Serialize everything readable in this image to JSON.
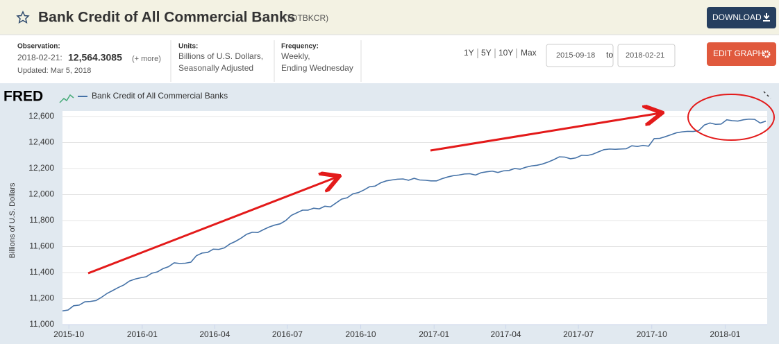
{
  "header": {
    "title": "Bank Credit of All Commercial Banks",
    "series_id": "(TOTBKCR)",
    "download": "DOWNLOAD"
  },
  "info": {
    "observation_label": "Observation:",
    "observation_date": "2018-02-21:",
    "observation_value": "12,564.3085",
    "more": "(+ more)",
    "updated": "Updated: Mar 5, 2018",
    "units_label": "Units:",
    "units": [
      "Billions of U.S. Dollars,",
      "Seasonally Adjusted"
    ],
    "frequency_label": "Frequency:",
    "frequency": [
      "Weekly,",
      "Ending Wednesday"
    ]
  },
  "controls": {
    "ranges": [
      "1Y",
      "5Y",
      "10Y",
      "Max"
    ],
    "start": "2015-09-18",
    "to": "to",
    "end": "2018-02-21",
    "edit": "EDIT GRAPH"
  },
  "chart_data": {
    "type": "line",
    "logo": "FRED",
    "y_label": "Billions of U.S. Dollars",
    "x": [
      "2015-09-23",
      "2015-09-30",
      "2015-10-07",
      "2015-10-14",
      "2015-10-21",
      "2015-10-28",
      "2015-11-04",
      "2015-11-11",
      "2015-11-18",
      "2015-11-25",
      "2015-12-02",
      "2015-12-09",
      "2015-12-16",
      "2015-12-23",
      "2015-12-30",
      "2016-01-06",
      "2016-01-13",
      "2016-01-20",
      "2016-01-27",
      "2016-02-03",
      "2016-02-10",
      "2016-02-17",
      "2016-02-24",
      "2016-03-02",
      "2016-03-09",
      "2016-03-16",
      "2016-03-23",
      "2016-03-30",
      "2016-04-06",
      "2016-04-13",
      "2016-04-20",
      "2016-04-27",
      "2016-05-04",
      "2016-05-11",
      "2016-05-18",
      "2016-05-25",
      "2016-06-01",
      "2016-06-08",
      "2016-06-15",
      "2016-06-22",
      "2016-06-29",
      "2016-07-06",
      "2016-07-13",
      "2016-07-20",
      "2016-07-27",
      "2016-08-03",
      "2016-08-10",
      "2016-08-17",
      "2016-08-24",
      "2016-08-31",
      "2016-09-07",
      "2016-09-14",
      "2016-09-21",
      "2016-09-28",
      "2016-10-05",
      "2016-10-12",
      "2016-10-19",
      "2016-10-26",
      "2016-11-02",
      "2016-11-09",
      "2016-11-16",
      "2016-11-23",
      "2016-11-30",
      "2016-12-07",
      "2016-12-14",
      "2016-12-21",
      "2016-12-28",
      "2017-01-04",
      "2017-01-11",
      "2017-01-18",
      "2017-01-25",
      "2017-02-01",
      "2017-02-08",
      "2017-02-15",
      "2017-02-22",
      "2017-03-01",
      "2017-03-08",
      "2017-03-15",
      "2017-03-22",
      "2017-03-29",
      "2017-04-05",
      "2017-04-12",
      "2017-04-19",
      "2017-04-26",
      "2017-05-03",
      "2017-05-10",
      "2017-05-17",
      "2017-05-24",
      "2017-05-31",
      "2017-06-07",
      "2017-06-14",
      "2017-06-21",
      "2017-06-28",
      "2017-07-05",
      "2017-07-12",
      "2017-07-19",
      "2017-07-26",
      "2017-08-02",
      "2017-08-09",
      "2017-08-16",
      "2017-08-23",
      "2017-08-30",
      "2017-09-06",
      "2017-09-13",
      "2017-09-20",
      "2017-09-27",
      "2017-10-04",
      "2017-10-11",
      "2017-10-18",
      "2017-10-25",
      "2017-11-01",
      "2017-11-08",
      "2017-11-15",
      "2017-11-22",
      "2017-11-29",
      "2017-12-06",
      "2017-12-13",
      "2017-12-20",
      "2017-12-27",
      "2018-01-03",
      "2018-01-10",
      "2018-01-17",
      "2018-01-24",
      "2018-01-31",
      "2018-02-07",
      "2018-02-14",
      "2018-02-21"
    ],
    "series": [
      {
        "name": "Bank Credit of All Commercial Banks",
        "color": "#4572a7",
        "values": [
          11105,
          11112,
          11145,
          11150,
          11175,
          11178,
          11185,
          11210,
          11240,
          11262,
          11285,
          11305,
          11335,
          11350,
          11360,
          11368,
          11395,
          11405,
          11430,
          11445,
          11475,
          11470,
          11472,
          11480,
          11530,
          11550,
          11555,
          11580,
          11578,
          11590,
          11620,
          11640,
          11665,
          11695,
          11710,
          11708,
          11730,
          11750,
          11765,
          11775,
          11800,
          11840,
          11860,
          11880,
          11880,
          11895,
          11890,
          11910,
          11905,
          11935,
          11965,
          11975,
          12005,
          12015,
          12035,
          12060,
          12065,
          12090,
          12105,
          12112,
          12118,
          12120,
          12110,
          12125,
          12112,
          12110,
          12105,
          12105,
          12122,
          12135,
          12145,
          12150,
          12158,
          12160,
          12150,
          12168,
          12175,
          12180,
          12170,
          12182,
          12185,
          12200,
          12195,
          12210,
          12220,
          12225,
          12235,
          12250,
          12268,
          12290,
          12288,
          12275,
          12282,
          12302,
          12300,
          12310,
          12328,
          12345,
          12350,
          12348,
          12350,
          12352,
          12375,
          12370,
          12378,
          12372,
          12430,
          12432,
          12445,
          12460,
          12475,
          12482,
          12486,
          12485,
          12492,
          12535,
          12550,
          12540,
          12542,
          12575,
          12568,
          12565,
          12575,
          12580,
          12578,
          12550,
          12564.3085
        ]
      }
    ],
    "xlim": [
      "2015-09-23",
      "2018-02-21"
    ],
    "xticks": [
      {
        "value": "2015-10-01",
        "label": "2015-10"
      },
      {
        "value": "2016-01-01",
        "label": "2016-01"
      },
      {
        "value": "2016-04-01",
        "label": "2016-04"
      },
      {
        "value": "2016-07-01",
        "label": "2016-07"
      },
      {
        "value": "2016-10-01",
        "label": "2016-10"
      },
      {
        "value": "2017-01-01",
        "label": "2017-01"
      },
      {
        "value": "2017-04-01",
        "label": "2017-04"
      },
      {
        "value": "2017-07-01",
        "label": "2017-07"
      },
      {
        "value": "2017-10-01",
        "label": "2017-10"
      },
      {
        "value": "2018-01-01",
        "label": "2018-01"
      }
    ],
    "ylim": [
      11000,
      12600
    ],
    "yticks": [
      {
        "value": 11000,
        "label": "11,000"
      },
      {
        "value": 11200,
        "label": "11,200"
      },
      {
        "value": 11400,
        "label": "11,400"
      },
      {
        "value": 11600,
        "label": "11,600"
      },
      {
        "value": 11800,
        "label": "11,800"
      },
      {
        "value": 12000,
        "label": "12,000"
      },
      {
        "value": 12200,
        "label": "12,200"
      },
      {
        "value": 12400,
        "label": "12,400"
      },
      {
        "value": 12600,
        "label": "12,600"
      }
    ],
    "grid": true
  }
}
